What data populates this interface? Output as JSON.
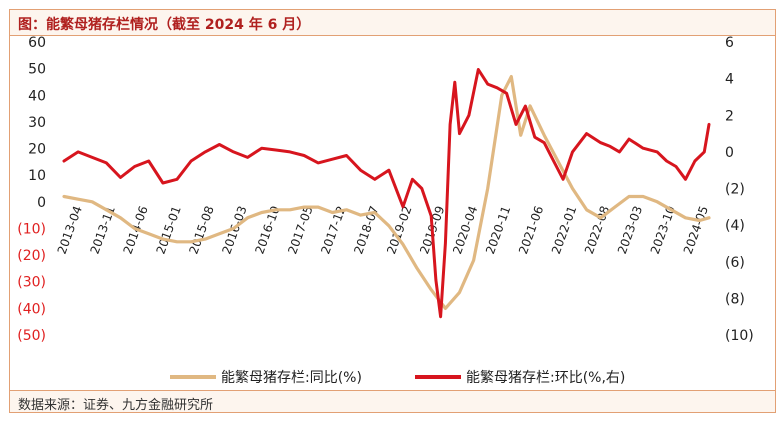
{
  "header": {
    "title": "图：能繁母猪存栏情况（截至 2024 年 6 月）"
  },
  "footer": {
    "source": "数据来源：证券、九方金融研究所"
  },
  "colors": {
    "yoy_series": "#e0b882",
    "mom_series": "#d7151e",
    "border": "#e2a074",
    "title": "#b0201f"
  },
  "chart_data": {
    "type": "line",
    "title": "",
    "y_left": {
      "ticks": [
        "60",
        "50",
        "40",
        "30",
        "20",
        "10",
        "0",
        "(10)",
        "(20)",
        "(30)",
        "(40)",
        "(50)"
      ],
      "ylim": [
        -50,
        60
      ]
    },
    "y_right": {
      "ticks": [
        "6",
        "4",
        "2",
        "0",
        "(2)",
        "(4)",
        "(6)",
        "(8)",
        "(10)"
      ],
      "ylim": [
        -10,
        6
      ]
    },
    "x_tick_labels": [
      "2013-04",
      "2013-11",
      "2014-06",
      "2015-01",
      "2015-08",
      "2016-03",
      "2016-10",
      "2017-05",
      "2017-12",
      "2018-07",
      "2019-02",
      "2019-09",
      "2020-04",
      "2020-11",
      "2021-06",
      "2022-01",
      "2022-08",
      "2023-03",
      "2023-10",
      "2024-05"
    ],
    "grid": false,
    "legend_position": "bottom",
    "series": [
      {
        "name": "能繁母猪存栏:同比(%)",
        "axis": "left",
        "x": [
          "2013-01",
          "2013-04",
          "2013-07",
          "2013-10",
          "2014-01",
          "2014-04",
          "2014-07",
          "2014-10",
          "2015-01",
          "2015-04",
          "2015-07",
          "2015-10",
          "2016-01",
          "2016-04",
          "2016-07",
          "2016-10",
          "2017-01",
          "2017-04",
          "2017-07",
          "2017-10",
          "2018-01",
          "2018-04",
          "2018-07",
          "2018-10",
          "2019-01",
          "2019-04",
          "2019-07",
          "2019-10",
          "2020-01",
          "2020-04",
          "2020-07",
          "2020-10",
          "2020-12",
          "2021-02",
          "2021-04",
          "2021-07",
          "2021-10",
          "2022-01",
          "2022-04",
          "2022-07",
          "2022-10",
          "2023-01",
          "2023-04",
          "2023-07",
          "2023-10",
          "2024-01",
          "2024-04",
          "2024-06"
        ],
        "values": [
          2,
          1,
          0,
          -3,
          -6,
          -10,
          -12,
          -14,
          -15,
          -15,
          -14,
          -12,
          -10,
          -6,
          -4,
          -3,
          -3,
          -2,
          -2,
          -4,
          -3,
          -5,
          -4,
          -9,
          -16,
          -25,
          -33,
          -40,
          -34,
          -22,
          5,
          40,
          47,
          25,
          36,
          25,
          15,
          5,
          -3,
          -6,
          -2,
          2,
          2,
          0,
          -3,
          -6,
          -7,
          -6
        ]
      },
      {
        "name": "能繁母猪存栏:环比(%,右)",
        "axis": "right",
        "x": [
          "2013-01",
          "2013-04",
          "2013-07",
          "2013-10",
          "2014-01",
          "2014-04",
          "2014-07",
          "2014-10",
          "2015-01",
          "2015-04",
          "2015-07",
          "2015-10",
          "2016-01",
          "2016-04",
          "2016-07",
          "2016-10",
          "2017-01",
          "2017-04",
          "2017-07",
          "2017-10",
          "2018-01",
          "2018-04",
          "2018-07",
          "2018-10",
          "2019-01",
          "2019-03",
          "2019-05",
          "2019-07",
          "2019-08",
          "2019-09",
          "2019-10",
          "2019-11",
          "2019-12",
          "2020-01",
          "2020-03",
          "2020-05",
          "2020-07",
          "2020-09",
          "2020-11",
          "2021-01",
          "2021-03",
          "2021-05",
          "2021-07",
          "2021-09",
          "2021-11",
          "2022-01",
          "2022-04",
          "2022-07",
          "2022-09",
          "2022-11",
          "2023-01",
          "2023-04",
          "2023-07",
          "2023-09",
          "2023-11",
          "2024-01",
          "2024-03",
          "2024-05",
          "2024-06"
        ],
        "values": [
          -0.5,
          0,
          -0.3,
          -0.6,
          -1.4,
          -0.8,
          -0.5,
          -1.7,
          -1.5,
          -0.5,
          0,
          0.4,
          0,
          -0.3,
          0.2,
          0.1,
          0,
          -0.2,
          -0.6,
          -0.4,
          -0.2,
          -1,
          -1.5,
          -1,
          -3,
          -1.5,
          -2,
          -3.5,
          -7,
          -9,
          -5,
          1.5,
          3.8,
          1,
          2,
          4.5,
          3.7,
          3.5,
          3.2,
          1.5,
          2.5,
          0.8,
          0.5,
          -0.5,
          -1.5,
          0,
          1,
          0.5,
          0.3,
          0,
          0.7,
          0.2,
          0,
          -0.5,
          -0.8,
          -1.5,
          -0.5,
          0,
          1.5
        ]
      }
    ]
  }
}
